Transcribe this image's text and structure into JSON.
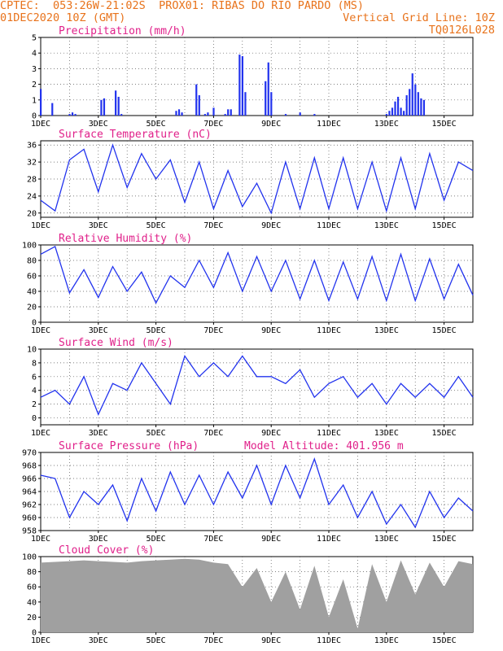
{
  "header": {
    "line1_left": "CPTEC:  053:26W-21:02S  PROX01: RIBAS DO RIO PARDO (MS)",
    "line2_left": "01DEC2020 10Z (GMT)",
    "line2_right": "Vertical Grid Line: 10Z",
    "line3_right": "TQ0126L028"
  },
  "colors": {
    "header": "#e8731c",
    "panel_title": "#e0208a",
    "series": "#2233ee",
    "cloud": "#a0a0a0"
  },
  "x_axis": {
    "start": "01DEC2020 10Z",
    "days": 15,
    "tick_labels": [
      "1DEC",
      "3DEC",
      "5DEC",
      "7DEC",
      "9DEC",
      "11DEC",
      "13DEC",
      "15DEC"
    ],
    "tick_days": [
      0,
      2,
      4,
      6,
      8,
      10,
      12,
      14
    ],
    "grid": "vertical dotted at 10Z each day"
  },
  "chart_data": [
    {
      "type": "bar",
      "title": "Precipitation (mm/h)",
      "ylim": [
        0,
        5
      ],
      "yticks": [
        0,
        1,
        2,
        3,
        4,
        5
      ],
      "x": [
        0.0,
        0.4,
        1.0,
        1.1,
        1.2,
        2.1,
        2.2,
        2.6,
        2.7,
        2.8,
        4.7,
        4.8,
        4.9,
        5.4,
        5.5,
        5.7,
        5.8,
        6.0,
        6.4,
        6.5,
        6.6,
        6.9,
        7.0,
        7.1,
        7.8,
        7.9,
        8.0,
        8.5,
        9.0,
        9.5,
        12.0,
        12.1,
        12.2,
        12.3,
        12.4,
        12.5,
        12.6,
        12.7,
        12.8,
        12.9,
        13.0,
        13.1,
        13.2,
        13.3
      ],
      "values": [
        1.7,
        0.8,
        0.1,
        0.2,
        0.1,
        1.0,
        1.1,
        1.6,
        1.2,
        0.1,
        0.3,
        0.4,
        0.2,
        2.0,
        1.3,
        0.1,
        0.2,
        0.5,
        0.1,
        0.4,
        0.4,
        3.9,
        3.8,
        1.5,
        2.2,
        3.4,
        1.5,
        0.1,
        0.2,
        0.1,
        0.1,
        0.3,
        0.5,
        0.9,
        1.2,
        0.5,
        0.3,
        1.3,
        1.7,
        2.7,
        2.0,
        1.5,
        1.1,
        1.0
      ]
    },
    {
      "type": "line",
      "title": "Surface Temperature (nC)",
      "ylim": [
        19,
        37
      ],
      "yticks": [
        20,
        24,
        28,
        32,
        36
      ],
      "x": [
        0.0,
        0.5,
        1.0,
        1.5,
        2.0,
        2.5,
        3.0,
        3.5,
        4.0,
        4.5,
        5.0,
        5.5,
        6.0,
        6.5,
        7.0,
        7.5,
        8.0,
        8.5,
        9.0,
        9.5,
        10.0,
        10.5,
        11.0,
        11.5,
        12.0,
        12.5,
        13.0,
        13.5,
        14.0,
        14.5,
        15.0
      ],
      "values": [
        23,
        20.5,
        32.5,
        35,
        25,
        36,
        26,
        34,
        28,
        32.5,
        22.5,
        32,
        21,
        30,
        21.5,
        27,
        20,
        32,
        21,
        33,
        21,
        33,
        21,
        32,
        20.5,
        33,
        21,
        34,
        23,
        32,
        30
      ]
    },
    {
      "type": "line",
      "title": "Relative Humidity (%)",
      "ylim": [
        0,
        100
      ],
      "yticks": [
        0,
        20,
        40,
        60,
        80,
        100
      ],
      "x": [
        0.0,
        0.5,
        1.0,
        1.5,
        2.0,
        2.5,
        3.0,
        3.5,
        4.0,
        4.5,
        5.0,
        5.5,
        6.0,
        6.5,
        7.0,
        7.5,
        8.0,
        8.5,
        9.0,
        9.5,
        10.0,
        10.5,
        11.0,
        11.5,
        12.0,
        12.5,
        13.0,
        13.5,
        14.0,
        14.5,
        15.0
      ],
      "values": [
        88,
        98,
        38,
        68,
        32,
        72,
        40,
        65,
        25,
        60,
        45,
        80,
        45,
        90,
        40,
        85,
        40,
        80,
        30,
        80,
        28,
        78,
        30,
        85,
        28,
        88,
        28,
        82,
        30,
        75,
        35
      ]
    },
    {
      "type": "line",
      "title": "Surface Wind (m/s)",
      "ylim": [
        -1,
        10
      ],
      "yticks": [
        0,
        2,
        4,
        6,
        8,
        10
      ],
      "x": [
        0.0,
        0.5,
        1.0,
        1.5,
        2.0,
        2.5,
        3.0,
        3.5,
        4.0,
        4.5,
        5.0,
        5.5,
        6.0,
        6.5,
        7.0,
        7.5,
        8.0,
        8.5,
        9.0,
        9.5,
        10.0,
        10.5,
        11.0,
        11.5,
        12.0,
        12.5,
        13.0,
        13.5,
        14.0,
        14.5,
        15.0
      ],
      "values": [
        3,
        4,
        2,
        6,
        0.5,
        5,
        4,
        8,
        5,
        2,
        9,
        6,
        8,
        6,
        9,
        6,
        6,
        5,
        7,
        3,
        5,
        6,
        3,
        5,
        2,
        5,
        3,
        5,
        3,
        6,
        3
      ]
    },
    {
      "type": "line",
      "title": "Surface Pressure (hPa)",
      "annotation": "Model Altitude: 401.956  m",
      "ylim": [
        958,
        970
      ],
      "yticks": [
        958,
        960,
        962,
        964,
        966,
        968,
        970
      ],
      "x": [
        0.0,
        0.5,
        1.0,
        1.5,
        2.0,
        2.5,
        3.0,
        3.5,
        4.0,
        4.5,
        5.0,
        5.5,
        6.0,
        6.5,
        7.0,
        7.5,
        8.0,
        8.5,
        9.0,
        9.5,
        10.0,
        10.5,
        11.0,
        11.5,
        12.0,
        12.5,
        13.0,
        13.5,
        14.0,
        14.5,
        15.0
      ],
      "values": [
        966.5,
        966,
        960,
        964,
        962,
        965,
        959.5,
        966,
        961,
        967,
        962,
        966.5,
        962,
        967,
        963,
        968,
        962,
        968,
        963,
        969,
        962,
        965,
        960,
        964,
        959,
        962,
        958.5,
        964,
        960,
        963,
        961
      ]
    },
    {
      "type": "area",
      "title": "Cloud Cover (%)",
      "ylim": [
        0,
        100
      ],
      "yticks": [
        0,
        20,
        40,
        60,
        80,
        100
      ],
      "x": [
        0.0,
        0.5,
        1.0,
        1.5,
        2.0,
        2.5,
        3.0,
        3.5,
        4.0,
        4.5,
        5.0,
        5.5,
        6.0,
        6.5,
        7.0,
        7.5,
        8.0,
        8.5,
        9.0,
        9.5,
        10.0,
        10.5,
        11.0,
        11.5,
        12.0,
        12.5,
        13.0,
        13.5,
        14.0,
        14.5,
        15.0
      ],
      "values": [
        92,
        93,
        94,
        95,
        94,
        93,
        92,
        94,
        95,
        96,
        97,
        96,
        92,
        90,
        60,
        85,
        40,
        80,
        30,
        88,
        20,
        70,
        5,
        90,
        40,
        95,
        50,
        92,
        60,
        94,
        90
      ]
    }
  ]
}
